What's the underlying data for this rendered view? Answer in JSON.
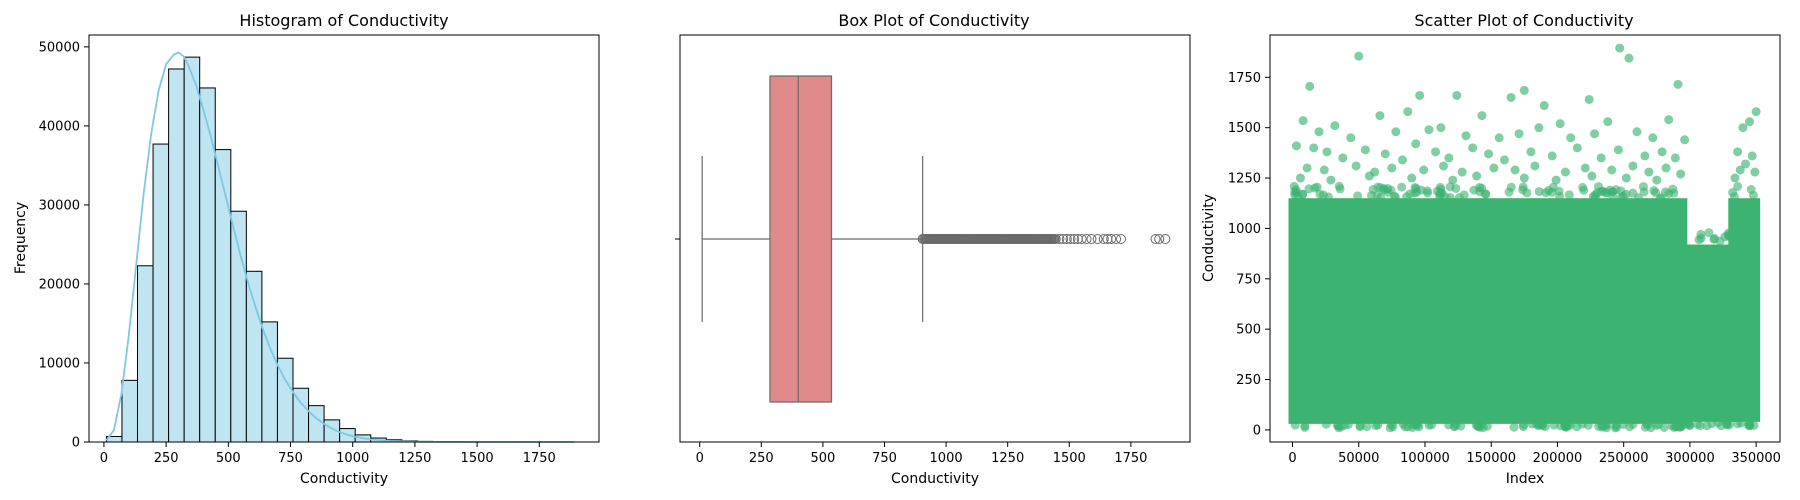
{
  "colors": {
    "hist_fill": "#bfe4f2",
    "hist_edge": "#000000",
    "kde_line": "#7ec8e3",
    "box_fill": "#e08a8c",
    "box_line": "#6a6a6a",
    "flier_edge": "#6a6a6a",
    "scatter": "#3cb371"
  },
  "chart_data": [
    {
      "type": "bar",
      "title": "Histogram of Conductivity",
      "xlabel": "Conductivity",
      "ylabel": "Frequency",
      "xlim": [
        -60,
        1990
      ],
      "ylim": [
        0,
        51500
      ],
      "xticks": [
        0,
        250,
        500,
        750,
        1000,
        1250,
        1500,
        1750
      ],
      "yticks": [
        0,
        10000,
        20000,
        30000,
        40000,
        50000
      ],
      "bins": {
        "start": 10,
        "width": 62.5
      },
      "values": [
        700,
        7800,
        22300,
        37700,
        47200,
        48700,
        44800,
        37000,
        29200,
        21600,
        15200,
        10600,
        6800,
        4600,
        2800,
        1700,
        900,
        500,
        280,
        150,
        80,
        40,
        20,
        10,
        6,
        3,
        2,
        1
      ],
      "kde": {
        "x": [
          10,
          40,
          70,
          100,
          130,
          160,
          190,
          220,
          250,
          280,
          300,
          320,
          340,
          370,
          400,
          430,
          460,
          490,
          520,
          550,
          580,
          610,
          640,
          670,
          700,
          730,
          760,
          790,
          820,
          850,
          880,
          910,
          940,
          970,
          1000,
          1050,
          1100,
          1150,
          1200,
          1300,
          1400,
          1500,
          1600,
          1700,
          1800,
          1890
        ],
        "y": [
          200,
          1500,
          6000,
          13500,
          22500,
          31500,
          39000,
          44500,
          47800,
          49000,
          49300,
          48800,
          47600,
          45200,
          42000,
          38600,
          34800,
          31000,
          27200,
          23500,
          20100,
          17000,
          14200,
          11700,
          9600,
          7800,
          6300,
          5000,
          4000,
          3100,
          2400,
          1800,
          1350,
          1000,
          730,
          420,
          240,
          130,
          70,
          20,
          6,
          2,
          1,
          0,
          0,
          0
        ]
      }
    },
    {
      "type": "box",
      "title": "Box Plot of Conductivity",
      "xlabel": "Conductivity",
      "xlim": [
        -80,
        1990
      ],
      "xticks": [
        0,
        250,
        500,
        750,
        1000,
        1250,
        1500,
        1750
      ],
      "whisker_low": 10,
      "q1": 285,
      "median": 400,
      "q3": 535,
      "whisker_high": 905,
      "outliers_dense_range": [
        905,
        1450
      ],
      "outliers": [
        1460,
        1475,
        1490,
        1505,
        1520,
        1535,
        1550,
        1570,
        1590,
        1615,
        1640,
        1655,
        1670,
        1690,
        1710,
        1850,
        1865,
        1890
      ]
    },
    {
      "type": "scatter",
      "title": "Scatter Plot of Conductivity",
      "xlabel": "Index",
      "ylabel": "Conductivity",
      "xlim": [
        -17000,
        368000
      ],
      "ylim": [
        -60,
        1960
      ],
      "xticks": [
        0,
        50000,
        100000,
        150000,
        200000,
        250000,
        300000,
        350000
      ],
      "yticks": [
        0,
        250,
        500,
        750,
        1000,
        1250,
        1500,
        1750
      ],
      "dense_bands": [
        {
          "x": [
            0,
            295000
          ],
          "y": [
            30,
            1150
          ]
        },
        {
          "x": [
            295000,
            332000
          ],
          "y": [
            40,
            920
          ]
        },
        {
          "x": [
            332000,
            350000
          ],
          "y": [
            40,
            1150
          ]
        }
      ],
      "points": [
        [
          50000,
          1855
        ],
        [
          13000,
          1705
        ],
        [
          247000,
          1895
        ],
        [
          254000,
          1845
        ],
        [
          291000,
          1715
        ],
        [
          175000,
          1685
        ],
        [
          96000,
          1660
        ],
        [
          124000,
          1660
        ],
        [
          224000,
          1640
        ],
        [
          165000,
          1650
        ],
        [
          190000,
          1610
        ],
        [
          350000,
          1580
        ],
        [
          8000,
          1535
        ],
        [
          66000,
          1560
        ],
        [
          112000,
          1500
        ],
        [
          143000,
          1560
        ],
        [
          202000,
          1520
        ],
        [
          238000,
          1530
        ],
        [
          284000,
          1540
        ],
        [
          345000,
          1530
        ],
        [
          20000,
          1480
        ],
        [
          32000,
          1510
        ],
        [
          44000,
          1450
        ],
        [
          78000,
          1480
        ],
        [
          87000,
          1580
        ],
        [
          103000,
          1490
        ],
        [
          131000,
          1460
        ],
        [
          156000,
          1450
        ],
        [
          171000,
          1470
        ],
        [
          186000,
          1500
        ],
        [
          210000,
          1450
        ],
        [
          228000,
          1470
        ],
        [
          260000,
          1480
        ],
        [
          272000,
          1450
        ],
        [
          296000,
          1440
        ],
        [
          340000,
          1500
        ],
        [
          3000,
          1410
        ],
        [
          16000,
          1400
        ],
        [
          26000,
          1380
        ],
        [
          38000,
          1350
        ],
        [
          55000,
          1390
        ],
        [
          70000,
          1370
        ],
        [
          83000,
          1340
        ],
        [
          93000,
          1420
        ],
        [
          108000,
          1380
        ],
        [
          118000,
          1350
        ],
        [
          136000,
          1400
        ],
        [
          148000,
          1370
        ],
        [
          160000,
          1340
        ],
        [
          180000,
          1380
        ],
        [
          196000,
          1360
        ],
        [
          215000,
          1400
        ],
        [
          233000,
          1350
        ],
        [
          246000,
          1390
        ],
        [
          266000,
          1360
        ],
        [
          279000,
          1380
        ],
        [
          289000,
          1350
        ],
        [
          336000,
          1380
        ],
        [
          347000,
          1360
        ],
        [
          342000,
          1320
        ],
        [
          11000,
          1300
        ],
        [
          24000,
          1290
        ],
        [
          48000,
          1310
        ],
        [
          62000,
          1280
        ],
        [
          75000,
          1300
        ],
        [
          99000,
          1290
        ],
        [
          114000,
          1310
        ],
        [
          128000,
          1280
        ],
        [
          152000,
          1300
        ],
        [
          168000,
          1290
        ],
        [
          183000,
          1310
        ],
        [
          206000,
          1280
        ],
        [
          221000,
          1300
        ],
        [
          241000,
          1290
        ],
        [
          257000,
          1310
        ],
        [
          269000,
          1280
        ],
        [
          282000,
          1300
        ],
        [
          293000,
          1270
        ],
        [
          338000,
          1290
        ],
        [
          349000,
          1280
        ],
        [
          6000,
          1250
        ],
        [
          29000,
          1240
        ],
        [
          58000,
          1260
        ],
        [
          90000,
          1250
        ],
        [
          121000,
          1240
        ],
        [
          139000,
          1260
        ],
        [
          175000,
          1250
        ],
        [
          199000,
          1240
        ],
        [
          226000,
          1260
        ],
        [
          252000,
          1250
        ],
        [
          275000,
          1240
        ],
        [
          334000,
          1250
        ]
      ]
    }
  ]
}
